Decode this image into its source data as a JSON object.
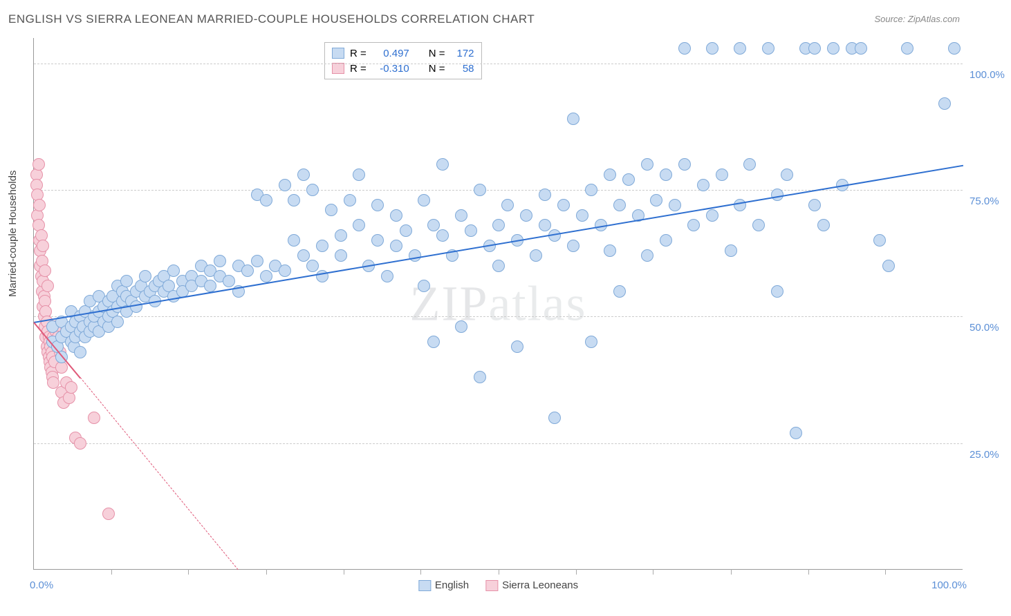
{
  "title": "ENGLISH VS SIERRA LEONEAN MARRIED-COUPLE HOUSEHOLDS CORRELATION CHART",
  "source": "Source: ZipAtlas.com",
  "ylabel": "Married-couple Households",
  "watermark": "ZIPatlas",
  "chart": {
    "type": "scatter",
    "xlim": [
      0,
      100
    ],
    "ylim": [
      0,
      105
    ],
    "y_ticks": [
      25,
      50,
      75,
      100
    ],
    "y_tick_labels": [
      "25.0%",
      "50.0%",
      "75.0%",
      "100.0%"
    ],
    "x_tick_labels": {
      "left": "0.0%",
      "right": "100.0%"
    },
    "x_minor_ticks": [
      8.3,
      16.6,
      25,
      33.3,
      41.6,
      50,
      58.3,
      66.6,
      75,
      83.3,
      91.6
    ],
    "background_color": "#ffffff",
    "grid_color": "#cccccc",
    "series": {
      "english": {
        "label": "English",
        "marker_fill": "#c7dbf2",
        "marker_stroke": "#7fa9d8",
        "marker_size": 18,
        "trend_color": "#2e6fd0",
        "trend": {
          "x1": 0,
          "y1": 49,
          "x2": 100,
          "y2": 80
        },
        "R": "0.497",
        "N": "172",
        "points": [
          [
            2,
            45
          ],
          [
            2,
            48
          ],
          [
            2.5,
            44
          ],
          [
            3,
            46
          ],
          [
            3,
            49
          ],
          [
            3,
            42
          ],
          [
            3.5,
            47
          ],
          [
            4,
            48
          ],
          [
            4,
            45
          ],
          [
            4,
            51
          ],
          [
            4.3,
            44
          ],
          [
            4.5,
            46
          ],
          [
            4.5,
            49
          ],
          [
            5,
            47
          ],
          [
            5,
            50
          ],
          [
            5,
            43
          ],
          [
            5.3,
            48
          ],
          [
            5.5,
            46
          ],
          [
            5.5,
            51
          ],
          [
            6,
            49
          ],
          [
            6,
            47
          ],
          [
            6,
            53
          ],
          [
            6.5,
            48
          ],
          [
            6.5,
            50
          ],
          [
            7,
            47
          ],
          [
            7,
            51
          ],
          [
            7,
            54
          ],
          [
            7.5,
            49
          ],
          [
            7.5,
            52
          ],
          [
            8,
            48
          ],
          [
            8,
            50
          ],
          [
            8,
            53
          ],
          [
            8.5,
            51
          ],
          [
            8.5,
            54
          ],
          [
            9,
            52
          ],
          [
            9,
            49
          ],
          [
            9,
            56
          ],
          [
            9.5,
            53
          ],
          [
            9.5,
            55
          ],
          [
            10,
            51
          ],
          [
            10,
            54
          ],
          [
            10,
            57
          ],
          [
            10.5,
            53
          ],
          [
            11,
            55
          ],
          [
            11,
            52
          ],
          [
            11.5,
            56
          ],
          [
            12,
            54
          ],
          [
            12,
            58
          ],
          [
            12.5,
            55
          ],
          [
            13,
            56
          ],
          [
            13,
            53
          ],
          [
            13.5,
            57
          ],
          [
            14,
            55
          ],
          [
            14,
            58
          ],
          [
            14.5,
            56
          ],
          [
            15,
            54
          ],
          [
            15,
            59
          ],
          [
            16,
            57
          ],
          [
            16,
            55
          ],
          [
            17,
            58
          ],
          [
            17,
            56
          ],
          [
            18,
            57
          ],
          [
            18,
            60
          ],
          [
            19,
            56
          ],
          [
            19,
            59
          ],
          [
            20,
            58
          ],
          [
            20,
            61
          ],
          [
            21,
            57
          ],
          [
            22,
            60
          ],
          [
            22,
            55
          ],
          [
            23,
            59
          ],
          [
            24,
            61
          ],
          [
            24,
            74
          ],
          [
            25,
            58
          ],
          [
            25,
            73
          ],
          [
            26,
            60
          ],
          [
            27,
            59
          ],
          [
            27,
            76
          ],
          [
            28,
            65
          ],
          [
            28,
            73
          ],
          [
            29,
            62
          ],
          [
            29,
            78
          ],
          [
            30,
            60
          ],
          [
            30,
            75
          ],
          [
            31,
            64
          ],
          [
            31,
            58
          ],
          [
            32,
            71
          ],
          [
            33,
            66
          ],
          [
            33,
            62
          ],
          [
            34,
            73
          ],
          [
            35,
            68
          ],
          [
            35,
            78
          ],
          [
            36,
            60
          ],
          [
            37,
            72
          ],
          [
            37,
            65
          ],
          [
            38,
            58
          ],
          [
            39,
            70
          ],
          [
            39,
            64
          ],
          [
            40,
            67
          ],
          [
            41,
            62
          ],
          [
            42,
            73
          ],
          [
            42,
            56
          ],
          [
            43,
            68
          ],
          [
            43,
            45
          ],
          [
            44,
            66
          ],
          [
            44,
            80
          ],
          [
            45,
            62
          ],
          [
            46,
            70
          ],
          [
            46,
            48
          ],
          [
            47,
            67
          ],
          [
            48,
            38
          ],
          [
            48,
            75
          ],
          [
            49,
            64
          ],
          [
            50,
            68
          ],
          [
            50,
            60
          ],
          [
            51,
            72
          ],
          [
            52,
            65
          ],
          [
            52,
            44
          ],
          [
            53,
            70
          ],
          [
            54,
            62
          ],
          [
            55,
            74
          ],
          [
            55,
            68
          ],
          [
            56,
            30
          ],
          [
            56,
            66
          ],
          [
            57,
            72
          ],
          [
            58,
            64
          ],
          [
            58,
            89
          ],
          [
            59,
            70
          ],
          [
            60,
            45
          ],
          [
            60,
            75
          ],
          [
            61,
            68
          ],
          [
            62,
            63
          ],
          [
            62,
            78
          ],
          [
            63,
            72
          ],
          [
            63,
            55
          ],
          [
            64,
            77
          ],
          [
            65,
            70
          ],
          [
            66,
            62
          ],
          [
            66,
            80
          ],
          [
            67,
            73
          ],
          [
            68,
            65
          ],
          [
            68,
            78
          ],
          [
            69,
            72
          ],
          [
            70,
            103
          ],
          [
            70,
            80
          ],
          [
            71,
            68
          ],
          [
            72,
            76
          ],
          [
            73,
            70
          ],
          [
            73,
            103
          ],
          [
            74,
            78
          ],
          [
            75,
            63
          ],
          [
            76,
            103
          ],
          [
            76,
            72
          ],
          [
            77,
            80
          ],
          [
            78,
            68
          ],
          [
            79,
            103
          ],
          [
            80,
            74
          ],
          [
            80,
            55
          ],
          [
            81,
            78
          ],
          [
            82,
            27
          ],
          [
            83,
            103
          ],
          [
            84,
            72
          ],
          [
            84,
            103
          ],
          [
            85,
            68
          ],
          [
            86,
            103
          ],
          [
            87,
            76
          ],
          [
            88,
            103
          ],
          [
            89,
            103
          ],
          [
            91,
            65
          ],
          [
            92,
            60
          ],
          [
            94,
            103
          ],
          [
            98,
            92
          ],
          [
            99,
            103
          ]
        ]
      },
      "sierra": {
        "label": "Sierra Leoneans",
        "marker_fill": "#f7d0da",
        "marker_stroke": "#e691a8",
        "marker_size": 18,
        "trend_color": "#e05a7a",
        "trend_solid": {
          "x1": 0,
          "y1": 49,
          "x2": 5,
          "y2": 38
        },
        "trend_dashed": {
          "x1": 5,
          "y1": 38,
          "x2": 22,
          "y2": 0
        },
        "R": "-0.310",
        "N": "58",
        "points": [
          [
            0.3,
            78
          ],
          [
            0.3,
            76
          ],
          [
            0.4,
            74
          ],
          [
            0.4,
            70
          ],
          [
            0.5,
            68
          ],
          [
            0.5,
            80
          ],
          [
            0.6,
            65
          ],
          [
            0.6,
            72
          ],
          [
            0.7,
            60
          ],
          [
            0.7,
            63
          ],
          [
            0.8,
            58
          ],
          [
            0.8,
            66
          ],
          [
            0.9,
            55
          ],
          [
            0.9,
            61
          ],
          [
            1.0,
            52
          ],
          [
            1.0,
            57
          ],
          [
            1.0,
            64
          ],
          [
            1.1,
            50
          ],
          [
            1.1,
            54
          ],
          [
            1.2,
            48
          ],
          [
            1.2,
            53
          ],
          [
            1.2,
            59
          ],
          [
            1.3,
            46
          ],
          [
            1.3,
            51
          ],
          [
            1.4,
            44
          ],
          [
            1.4,
            49
          ],
          [
            1.5,
            43
          ],
          [
            1.5,
            47
          ],
          [
            1.5,
            56
          ],
          [
            1.6,
            42
          ],
          [
            1.6,
            46
          ],
          [
            1.7,
            41
          ],
          [
            1.7,
            45
          ],
          [
            1.8,
            40
          ],
          [
            1.8,
            44
          ],
          [
            1.9,
            39
          ],
          [
            1.9,
            43
          ],
          [
            2.0,
            38
          ],
          [
            2.0,
            42
          ],
          [
            2.1,
            37
          ],
          [
            2.1,
            46
          ],
          [
            2.2,
            41
          ],
          [
            2.2,
            48
          ],
          [
            2.3,
            45
          ],
          [
            2.4,
            47
          ],
          [
            2.5,
            44
          ],
          [
            2.6,
            46
          ],
          [
            2.8,
            43
          ],
          [
            3.0,
            40
          ],
          [
            3.0,
            35
          ],
          [
            3.2,
            33
          ],
          [
            3.5,
            37
          ],
          [
            3.8,
            34
          ],
          [
            4.0,
            36
          ],
          [
            4.5,
            26
          ],
          [
            5.0,
            25
          ],
          [
            6.5,
            30
          ],
          [
            8.0,
            11
          ]
        ]
      }
    }
  },
  "stats_labels": {
    "R": "R =",
    "N": "N ="
  }
}
